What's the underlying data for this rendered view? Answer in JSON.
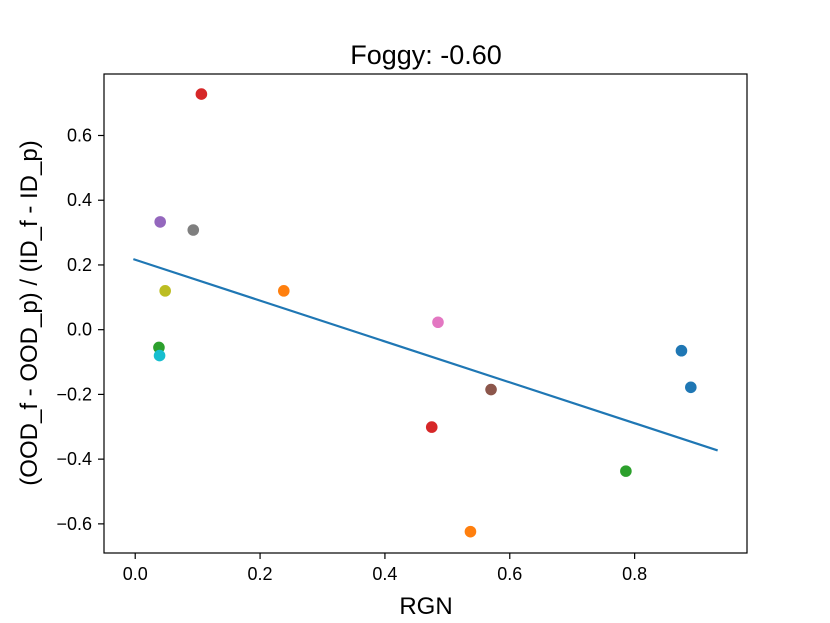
{
  "chart_data": {
    "type": "scatter",
    "title": "Foggy:  -0.60",
    "xlabel": "RGN",
    "ylabel": "(OOD_f - OOD_p) / (ID_f - ID_p)",
    "xlim": [
      -0.05,
      0.98
    ],
    "ylim": [
      -0.69,
      0.79
    ],
    "xticks": [
      0.0,
      0.2,
      0.4,
      0.6,
      0.8
    ],
    "xtick_labels": [
      "0.0",
      "0.2",
      "0.4",
      "0.6",
      "0.8"
    ],
    "yticks": [
      -0.6,
      -0.4,
      -0.2,
      0.0,
      0.2,
      0.4,
      0.6
    ],
    "ytick_labels": [
      "−0.6",
      "−0.4",
      "−0.2",
      "0.0",
      "0.2",
      "0.4",
      "0.6"
    ],
    "grid": false,
    "legend": "none",
    "points": [
      {
        "x": 0.875,
        "y": -0.065,
        "color": "#1f77b4"
      },
      {
        "x": 0.89,
        "y": -0.178,
        "color": "#1f77b4"
      },
      {
        "x": 0.238,
        "y": 0.12,
        "color": "#ff7f0e"
      },
      {
        "x": 0.537,
        "y": -0.624,
        "color": "#ff7f0e"
      },
      {
        "x": 0.038,
        "y": -0.055,
        "color": "#2ca02c"
      },
      {
        "x": 0.786,
        "y": -0.437,
        "color": "#2ca02c"
      },
      {
        "x": 0.106,
        "y": 0.728,
        "color": "#d62728"
      },
      {
        "x": 0.475,
        "y": -0.301,
        "color": "#d62728"
      },
      {
        "x": 0.04,
        "y": 0.333,
        "color": "#9467bd"
      },
      {
        "x": 0.57,
        "y": -0.185,
        "color": "#8c564b"
      },
      {
        "x": 0.485,
        "y": 0.023,
        "color": "#e377c2"
      },
      {
        "x": 0.093,
        "y": 0.308,
        "color": "#7f7f7f"
      },
      {
        "x": 0.048,
        "y": 0.12,
        "color": "#bcbd22"
      },
      {
        "x": 0.039,
        "y": -0.08,
        "color": "#17becf"
      }
    ],
    "trendline": {
      "x": [
        -0.003,
        0.933
      ],
      "y": [
        0.218,
        -0.373
      ],
      "color": "#1f77b4"
    }
  }
}
